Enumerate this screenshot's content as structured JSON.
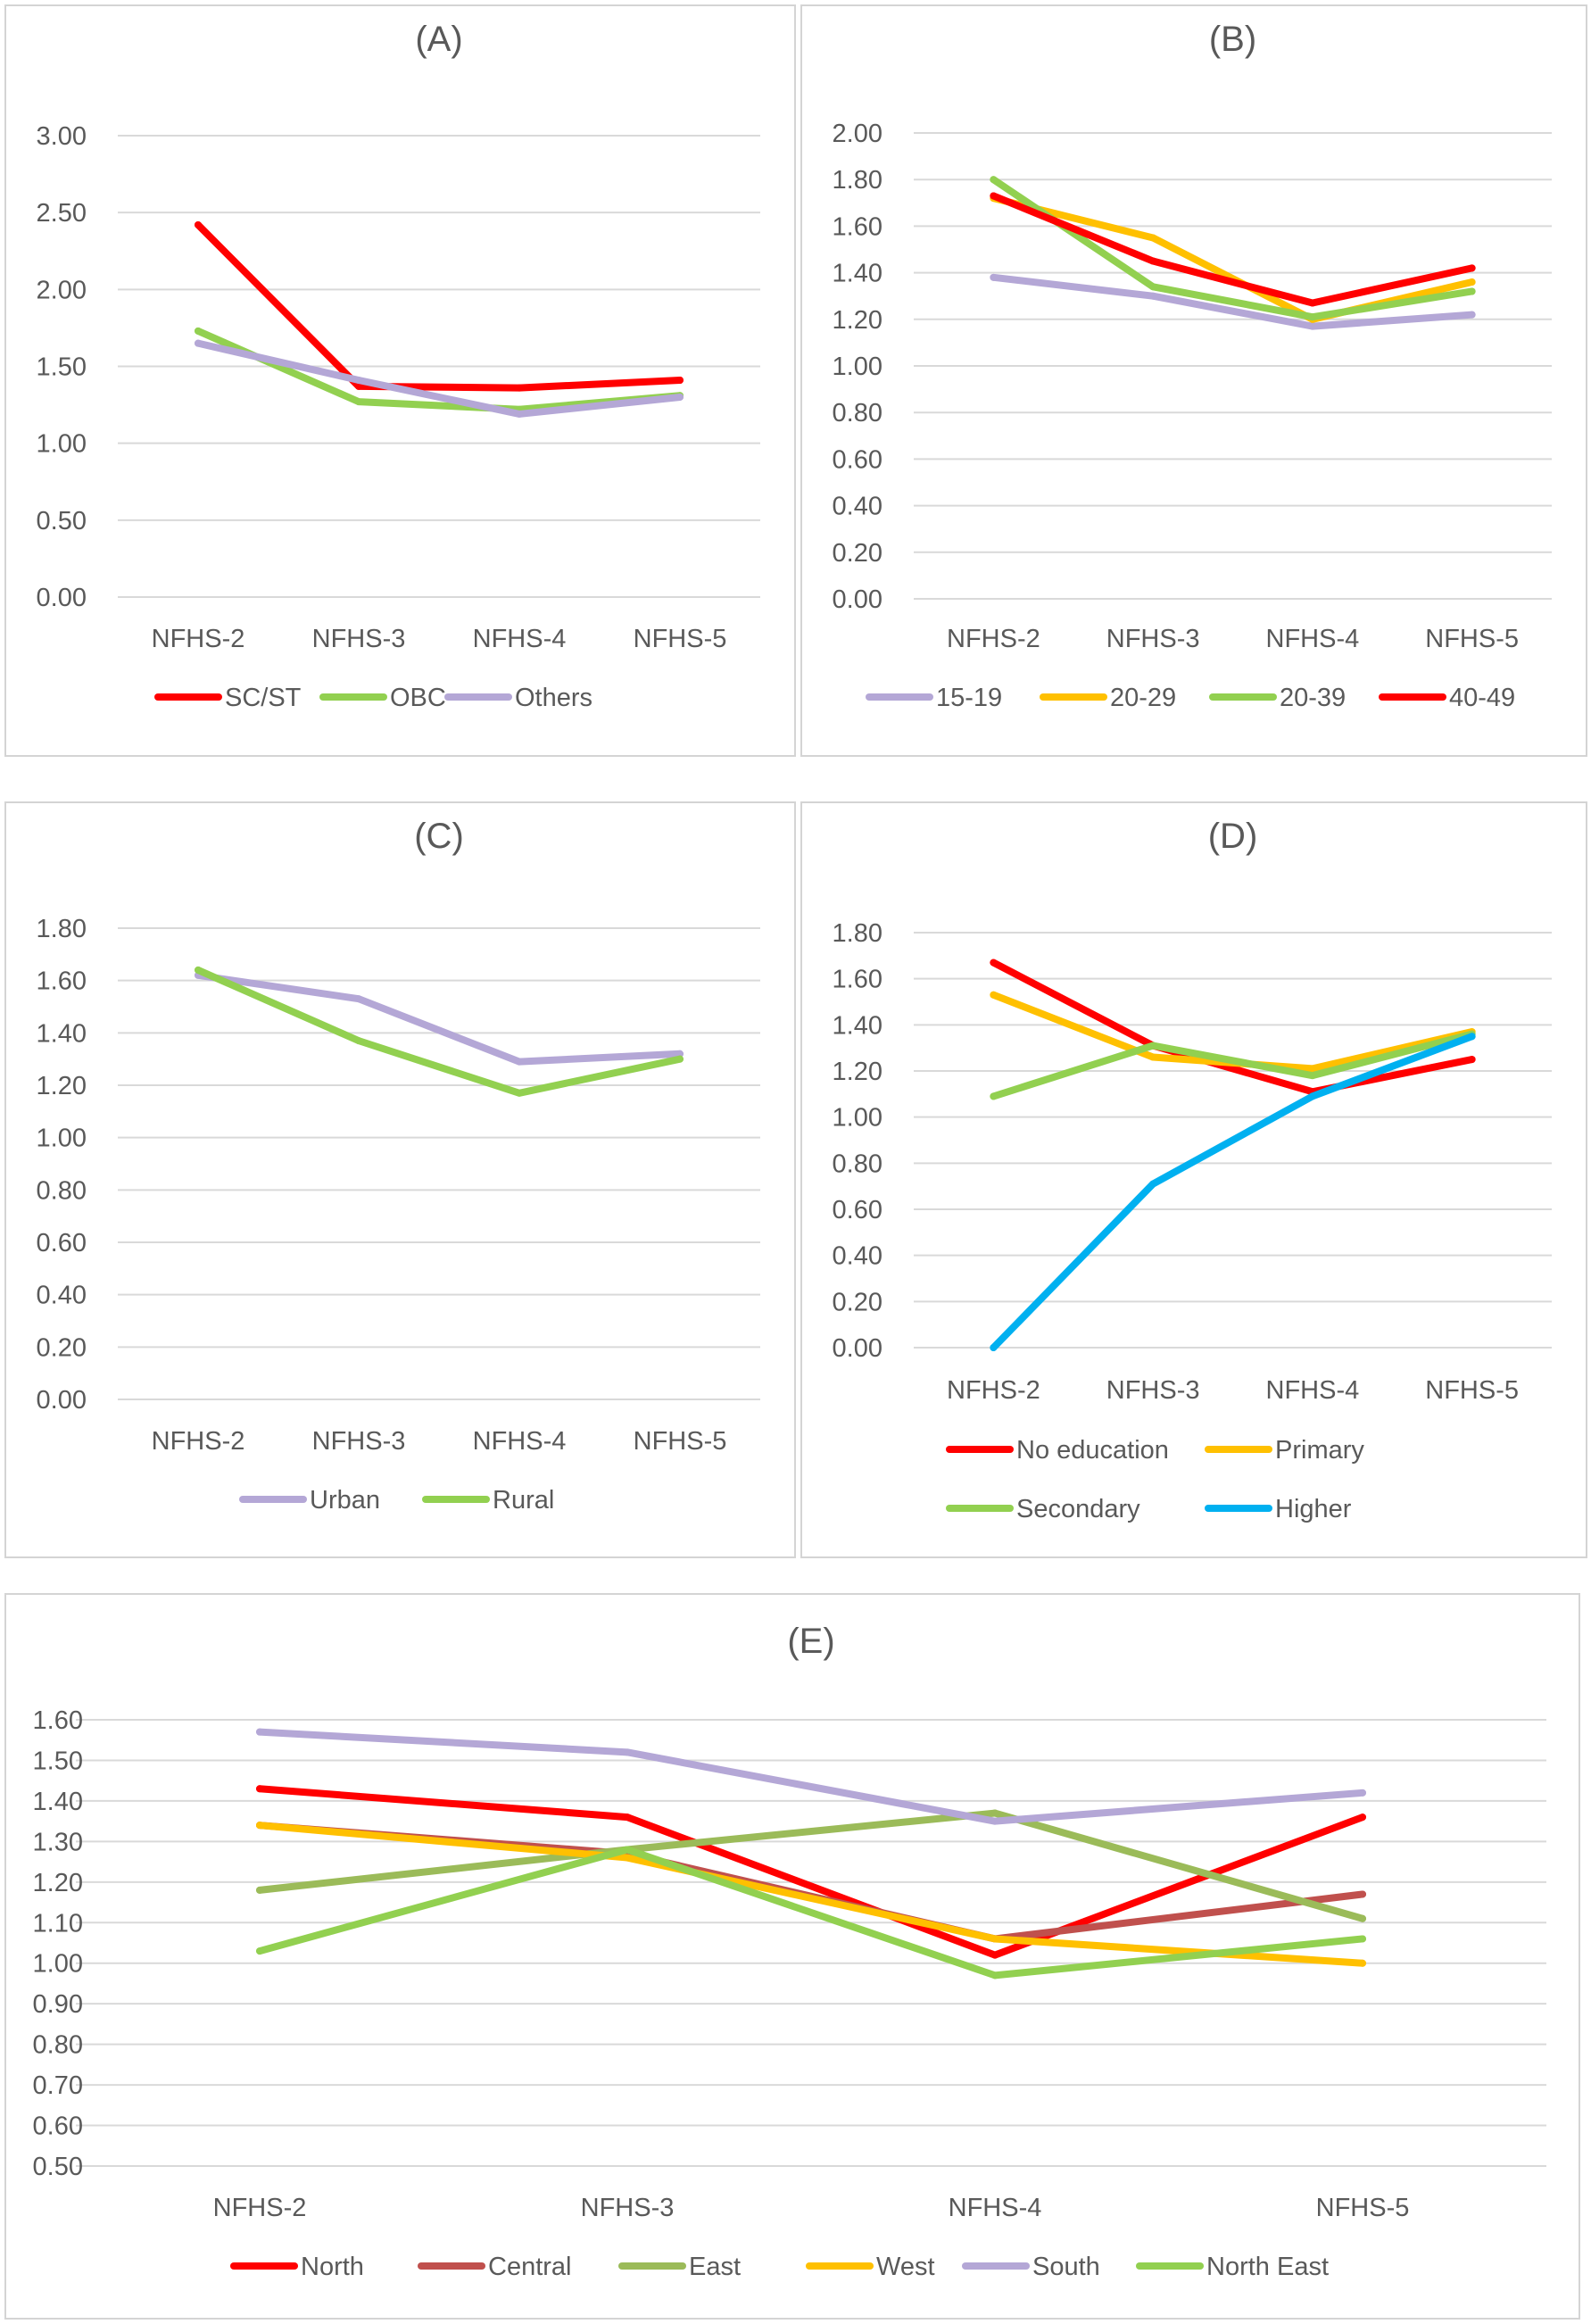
{
  "chart_data": [
    {
      "id": "A",
      "type": "line",
      "title": "(A)",
      "categories": [
        "NFHS-2",
        "NFHS-3",
        "NFHS-4",
        "NFHS-5"
      ],
      "ylim": [
        0,
        3
      ],
      "ytick_step": 0.5,
      "ytick_labels": [
        "0.00",
        "0.50",
        "1.00",
        "1.50",
        "2.00",
        "2.50",
        "3.00"
      ],
      "grid": true,
      "legend": "bottom",
      "series": [
        {
          "name": "SC/ST",
          "color": "#ff0000",
          "values": [
            2.42,
            1.37,
            1.36,
            1.41
          ]
        },
        {
          "name": "OBC",
          "color": "#92d050",
          "values": [
            1.73,
            1.27,
            1.22,
            1.31
          ]
        },
        {
          "name": "Others",
          "color": "#b4a7d6",
          "values": [
            1.65,
            1.41,
            1.19,
            1.3
          ]
        }
      ]
    },
    {
      "id": "B",
      "type": "line",
      "title": "(B)",
      "categories": [
        "NFHS-2",
        "NFHS-3",
        "NFHS-4",
        "NFHS-5"
      ],
      "ylim": [
        0,
        2
      ],
      "ytick_step": 0.2,
      "ytick_labels": [
        "0.00",
        "0.20",
        "0.40",
        "0.60",
        "0.80",
        "1.00",
        "1.20",
        "1.40",
        "1.60",
        "1.80",
        "2.00"
      ],
      "grid": true,
      "legend": "bottom",
      "series": [
        {
          "name": "15-19",
          "color": "#b4a7d6",
          "values": [
            1.38,
            1.3,
            1.17,
            1.22
          ]
        },
        {
          "name": "20-29",
          "color": "#ffc000",
          "values": [
            1.72,
            1.55,
            1.2,
            1.36
          ]
        },
        {
          "name": "20-39",
          "color": "#92d050",
          "values": [
            1.8,
            1.34,
            1.21,
            1.32
          ]
        },
        {
          "name": "40-49",
          "color": "#ff0000",
          "values": [
            1.73,
            1.45,
            1.27,
            1.42
          ]
        }
      ]
    },
    {
      "id": "C",
      "type": "line",
      "title": "(C)",
      "categories": [
        "NFHS-2",
        "NFHS-3",
        "NFHS-4",
        "NFHS-5"
      ],
      "ylim": [
        0,
        1.8
      ],
      "ytick_step": 0.2,
      "ytick_labels": [
        "0.00",
        "0.20",
        "0.40",
        "0.60",
        "0.80",
        "1.00",
        "1.20",
        "1.40",
        "1.60",
        "1.80"
      ],
      "grid": true,
      "legend": "bottom",
      "series": [
        {
          "name": "Urban",
          "color": "#b4a7d6",
          "values": [
            1.62,
            1.53,
            1.29,
            1.32
          ]
        },
        {
          "name": "Rural",
          "color": "#92d050",
          "values": [
            1.64,
            1.37,
            1.17,
            1.3
          ]
        }
      ]
    },
    {
      "id": "D",
      "type": "line",
      "title": "(D)",
      "categories": [
        "NFHS-2",
        "NFHS-3",
        "NFHS-4",
        "NFHS-5"
      ],
      "ylim": [
        0,
        1.8
      ],
      "ytick_step": 0.2,
      "ytick_labels": [
        "0.00",
        "0.20",
        "0.40",
        "0.60",
        "0.80",
        "1.00",
        "1.20",
        "1.40",
        "1.60",
        "1.80"
      ],
      "grid": true,
      "legend": "bottom",
      "series": [
        {
          "name": "No education",
          "color": "#ff0000",
          "values": [
            1.67,
            1.31,
            1.11,
            1.25
          ]
        },
        {
          "name": "Primary",
          "color": "#ffc000",
          "values": [
            1.53,
            1.26,
            1.21,
            1.37
          ]
        },
        {
          "name": "Secondary",
          "color": "#92d050",
          "values": [
            1.09,
            1.31,
            1.18,
            1.36
          ]
        },
        {
          "name": "Higher",
          "color": "#00b0f0",
          "values": [
            0.0,
            0.71,
            1.09,
            1.35
          ]
        }
      ]
    },
    {
      "id": "E",
      "type": "line",
      "title": "(E)",
      "categories": [
        "NFHS-2",
        "NFHS-3",
        "NFHS-4",
        "NFHS-5"
      ],
      "ylim": [
        0.5,
        1.6
      ],
      "ytick_step": 0.1,
      "ytick_labels": [
        "0.50",
        "0.60",
        "0.70",
        "0.80",
        "0.90",
        "1.00",
        "1.10",
        "1.20",
        "1.30",
        "1.40",
        "1.50",
        "1.60"
      ],
      "grid": true,
      "legend": "bottom",
      "series": [
        {
          "name": "North",
          "color": "#ff0000",
          "values": [
            1.43,
            1.36,
            1.02,
            1.36
          ]
        },
        {
          "name": "Central",
          "color": "#c0504d",
          "values": [
            1.34,
            1.27,
            1.06,
            1.17
          ]
        },
        {
          "name": "East",
          "color": "#9bbb59",
          "values": [
            1.18,
            1.28,
            1.37,
            1.11
          ]
        },
        {
          "name": "West",
          "color": "#ffc000",
          "values": [
            1.34,
            1.26,
            1.06,
            1.0
          ]
        },
        {
          "name": "South",
          "color": "#b4a7d6",
          "values": [
            1.57,
            1.52,
            1.35,
            1.42
          ]
        },
        {
          "name": "North East",
          "color": "#92d050",
          "values": [
            1.03,
            1.28,
            0.97,
            1.06
          ]
        }
      ]
    }
  ]
}
